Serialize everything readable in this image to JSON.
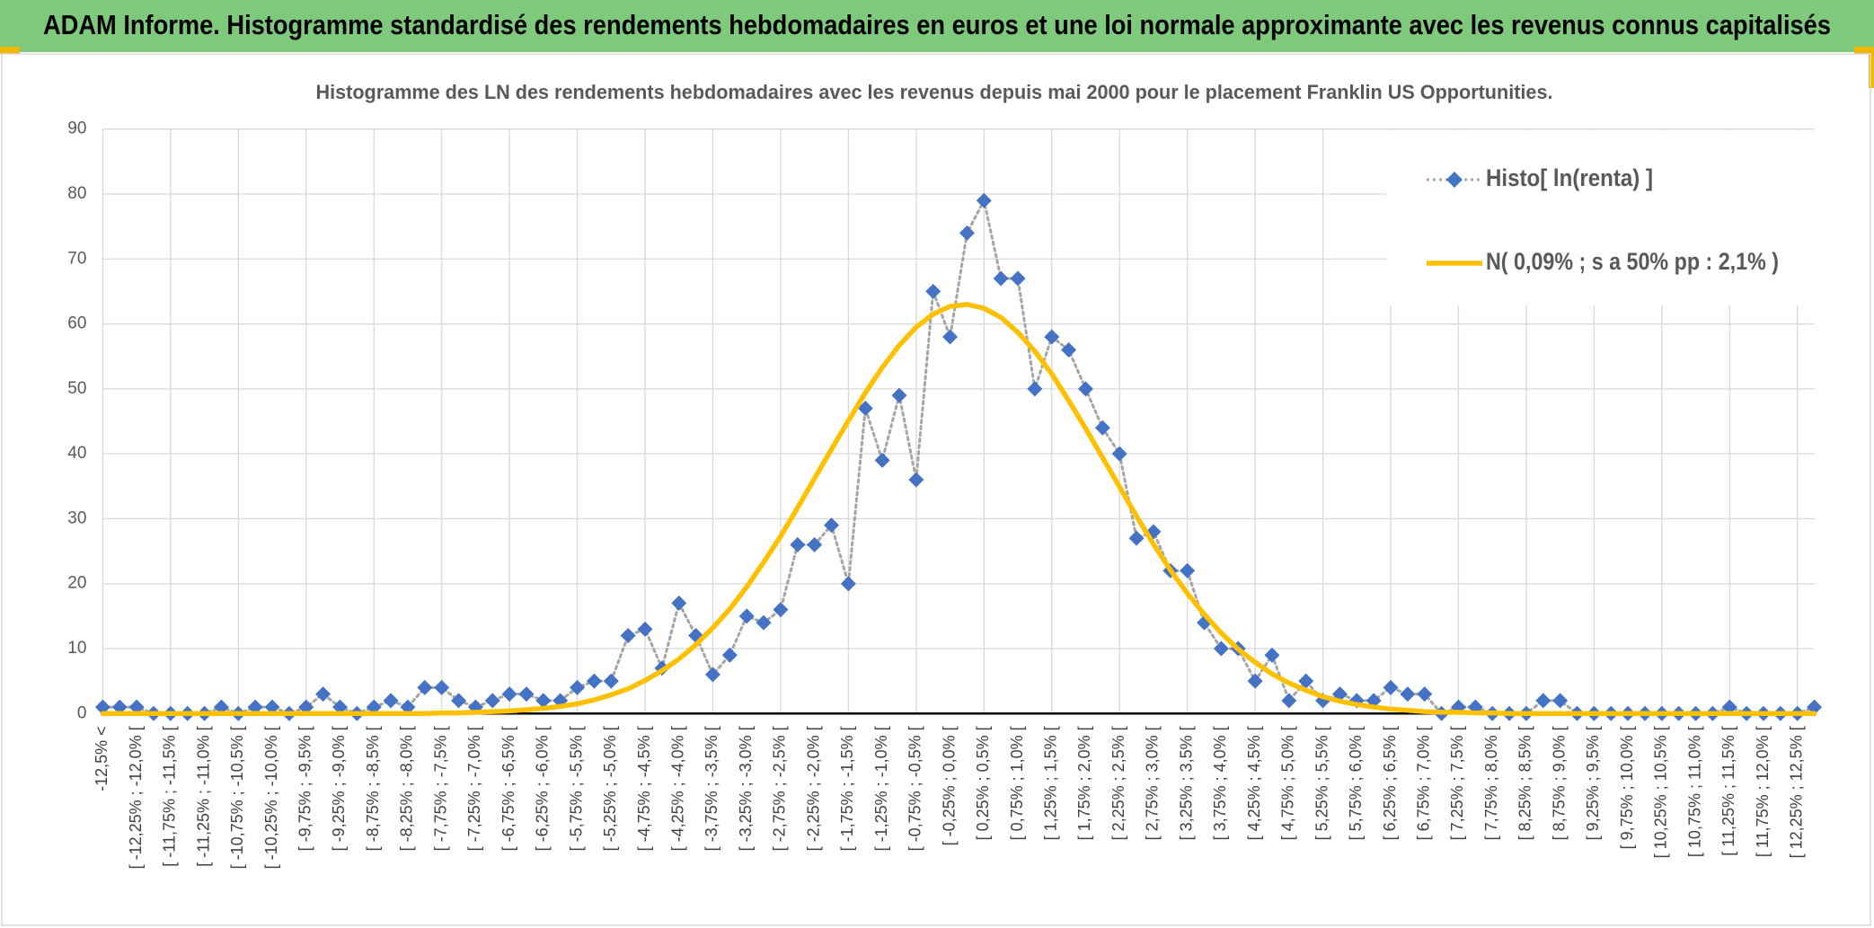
{
  "header": {
    "title": "ADAM Informe. Histogramme standardisé des rendements hebdomadaires en euros et une loi normale approximante avec les revenus connus capitalisés"
  },
  "chart_data": {
    "type": "line",
    "title": "Histogramme des LN des rendements hebdomadaires avec les revenus depuis mai 2000 pour le placement Franklin US Opportunities.",
    "categories": [
      "-12,5% <",
      null,
      "[ -12,25% ; -12,0% [",
      null,
      "[ -11,75% ; -11,5% [",
      null,
      "[ -11,25% ; -11,0% [",
      null,
      "[ -10,75% ; -10,5% [",
      null,
      "[ -10,25% ; -10,0% [",
      null,
      "[ -9,75% ; -9,5% [",
      null,
      "[ -9,25% ; -9,0% [",
      null,
      "[ -8,75% ; -8,5% [",
      null,
      "[ -8,25% ; -8,0% [",
      null,
      "[ -7,75% ; -7,5% [",
      null,
      "[ -7,25% ; -7,0% [",
      null,
      "[ -6,75% ; -6,5% [",
      null,
      "[ -6,25% ; -6,0% [",
      null,
      "[ -5,75% ; -5,5% [",
      null,
      "[ -5,25% ; -5,0% [",
      null,
      "[ -4,75% ; -4,5% [",
      null,
      "[ -4,25% ; -4,0% [",
      null,
      "[ -3,75% ; -3,5% [",
      null,
      "[ -3,25% ; -3,0% [",
      null,
      "[ -2,75% ; -2,5% [",
      null,
      "[ -2,25% ; -2,0% [",
      null,
      "[ -1,75% ; -1,5% [",
      null,
      "[ -1,25% ; -1,0% [",
      null,
      "[ -0,75% ; -0,5% [",
      null,
      "[ -0,25% ; 0,0% [",
      null,
      "[ 0,25% ; 0,5% [",
      null,
      "[ 0,75% ; 1,0% [",
      null,
      "[ 1,25% ; 1,5% [",
      null,
      "[ 1,75% ; 2,0% [",
      null,
      "[ 2,25% ; 2,5% [",
      null,
      "[ 2,75% ; 3,0% [",
      null,
      "[ 3,25% ; 3,5% [",
      null,
      "[ 3,75% ; 4,0% [",
      null,
      "[ 4,25% ; 4,5% [",
      null,
      "[ 4,75% ; 5,0% [",
      null,
      "[ 5,25% ; 5,5% [",
      null,
      "[ 5,75% ; 6,0% [",
      null,
      "[ 6,25% ; 6,5% [",
      null,
      "[ 6,75% ; 7,0% [",
      null,
      "[ 7,25% ; 7,5% [",
      null,
      "[ 7,75% ; 8,0% [",
      null,
      "[ 8,25% ; 8,5% [",
      null,
      "[ 8,75% ; 9,0% [",
      null,
      "[ 9,25% ; 9,5% [",
      null,
      "[ 9,75% ; 10,0% [",
      null,
      "[ 10,25% ; 10,5% [",
      null,
      "[ 10,75% ; 11,0% [",
      null,
      "[ 11,25% ; 11,5% [",
      null,
      "[ 11,75% ; 12,0% [",
      null,
      "[ 12,25% ; 12,5% [",
      null
    ],
    "series": [
      {
        "name": "Histo[ ln(renta) ]",
        "color": "#4472c4",
        "line_color": "#a5a5a5",
        "line_style": "dotted",
        "marker": "diamond",
        "values": [
          1,
          1,
          1,
          0,
          0,
          0,
          0,
          1,
          0,
          1,
          1,
          0,
          1,
          3,
          1,
          0,
          1,
          2,
          1,
          4,
          4,
          2,
          1,
          2,
          3,
          3,
          2,
          2,
          4,
          5,
          5,
          12,
          13,
          7,
          17,
          12,
          6,
          9,
          15,
          14,
          16,
          26,
          26,
          29,
          20,
          47,
          39,
          49,
          36,
          65,
          58,
          74,
          79,
          67,
          67,
          50,
          58,
          56,
          50,
          44,
          40,
          27,
          28,
          22,
          22,
          14,
          10,
          10,
          5,
          9,
          2,
          5,
          2,
          3,
          2,
          2,
          4,
          3,
          3,
          0,
          1,
          1,
          0,
          0,
          0,
          2,
          2,
          0,
          0,
          0,
          0,
          0,
          0,
          0,
          0,
          0,
          1,
          0,
          0,
          0,
          0,
          1
        ]
      },
      {
        "name": "N( 0,09% ; s a 50% pp : 2,1% )",
        "color": "#ffc000",
        "line_style": "solid",
        "values": [
          0,
          0,
          0,
          0,
          0,
          0,
          0,
          0,
          0,
          0,
          0,
          0,
          0,
          0,
          0,
          0,
          0,
          0,
          0,
          0,
          0.1,
          0.1,
          0.2,
          0.3,
          0.4,
          0.6,
          0.8,
          1.1,
          1.5,
          2.1,
          2.9,
          3.8,
          5.1,
          6.6,
          8.4,
          10.6,
          13.2,
          16.1,
          19.5,
          23.3,
          27.3,
          31.7,
          36.2,
          40.7,
          45.1,
          49.4,
          53.3,
          56.7,
          59.5,
          61.5,
          62.7,
          63.0,
          62.4,
          61.0,
          58.7,
          55.8,
          52.3,
          48.2,
          43.9,
          39.4,
          34.9,
          30.4,
          26.1,
          22.1,
          18.5,
          15.3,
          12.4,
          9.9,
          7.9,
          6.1,
          4.7,
          3.6,
          2.6,
          1.9,
          1.4,
          1.0,
          0.7,
          0.5,
          0.3,
          0.2,
          0.2,
          0.1,
          0.1,
          0,
          0,
          0,
          0,
          0,
          0,
          0,
          0,
          0,
          0,
          0,
          0,
          0,
          0,
          0,
          0,
          0,
          0,
          0
        ]
      }
    ],
    "ylim": [
      0,
      90
    ],
    "yticks": [
      0,
      10,
      20,
      30,
      40,
      50,
      60,
      70,
      80,
      90
    ],
    "grid": true,
    "legend": "top-right"
  }
}
